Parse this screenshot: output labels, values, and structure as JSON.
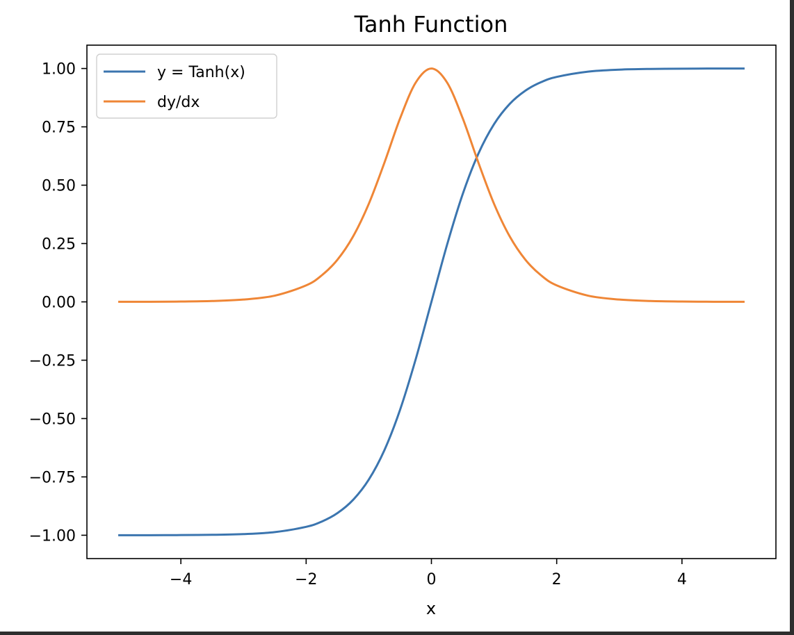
{
  "chart_data": {
    "type": "line",
    "title": "Tanh Function",
    "xlabel": "x",
    "ylabel": "",
    "xlim": [
      -5.5,
      5.5
    ],
    "ylim": [
      -1.1,
      1.1
    ],
    "xticks": [
      -4,
      -2,
      0,
      2,
      4
    ],
    "xtick_labels": [
      "−4",
      "−2",
      "0",
      "2",
      "4"
    ],
    "yticks": [
      -1.0,
      -0.75,
      -0.5,
      -0.25,
      0.0,
      0.25,
      0.5,
      0.75,
      1.0
    ],
    "ytick_labels": [
      "−1.00",
      "−0.75",
      "−0.50",
      "−0.25",
      "0.00",
      "0.25",
      "0.50",
      "0.75",
      "1.00"
    ],
    "grid": false,
    "legend_position": "top-left",
    "series": [
      {
        "name": "y = Tanh(x)",
        "color": "#3b75af",
        "x": [
          -5,
          -4.5,
          -4,
          -3.5,
          -3,
          -2.5,
          -2,
          -1.75,
          -1.5,
          -1.25,
          -1,
          -0.75,
          -0.5,
          -0.25,
          0,
          0.25,
          0.5,
          0.75,
          1,
          1.25,
          1.5,
          1.75,
          2,
          2.5,
          3,
          3.5,
          4,
          4.5,
          5
        ],
        "y": [
          -0.9999,
          -0.9998,
          -0.9993,
          -0.9982,
          -0.9951,
          -0.9866,
          -0.964,
          -0.9414,
          -0.9051,
          -0.8483,
          -0.7616,
          -0.6351,
          -0.4621,
          -0.2449,
          0,
          0.2449,
          0.4621,
          0.6351,
          0.7616,
          0.8483,
          0.9051,
          0.9414,
          0.964,
          0.9866,
          0.9951,
          0.9982,
          0.9993,
          0.9998,
          0.9999
        ]
      },
      {
        "name": "dy/dx",
        "color": "#ef8636",
        "x": [
          -5,
          -4.5,
          -4,
          -3.5,
          -3,
          -2.5,
          -2,
          -1.75,
          -1.5,
          -1.25,
          -1,
          -0.75,
          -0.5,
          -0.25,
          0,
          0.25,
          0.5,
          0.75,
          1,
          1.25,
          1.5,
          1.75,
          2,
          2.5,
          3,
          3.5,
          4,
          4.5,
          5
        ],
        "y": [
          0.0002,
          0.0005,
          0.0013,
          0.0036,
          0.0099,
          0.0266,
          0.0707,
          0.1138,
          0.1807,
          0.2805,
          0.42,
          0.5966,
          0.7864,
          0.94,
          1.0,
          0.94,
          0.7864,
          0.5966,
          0.42,
          0.2805,
          0.1807,
          0.1138,
          0.0707,
          0.0266,
          0.0099,
          0.0036,
          0.0013,
          0.0005,
          0.0002
        ]
      }
    ]
  }
}
